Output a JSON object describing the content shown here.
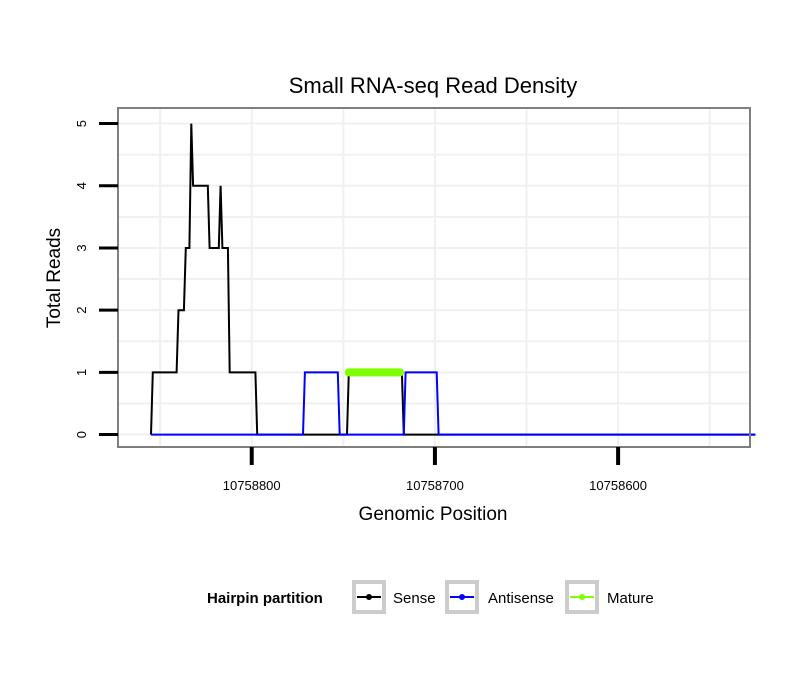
{
  "chart_data": {
    "type": "line",
    "title": "Small RNA-seq Read Density",
    "xlabel": "Genomic Position",
    "ylabel": "Total Reads",
    "x_reversed": true,
    "xlim": [
      10758873,
      10758528
    ],
    "ylim": [
      -0.2,
      5.25
    ],
    "xticks": [
      10758800,
      10758700,
      10758600
    ],
    "xtick_labels": [
      "10758800",
      "10758700",
      "10758600"
    ],
    "yticks": [
      0,
      1,
      2,
      3,
      4,
      5
    ],
    "ytick_labels": [
      "0",
      "1",
      "2",
      "3",
      "4",
      "5"
    ],
    "grid": true,
    "legend": {
      "title": "Hairpin partition",
      "position": "bottom",
      "entries": [
        {
          "label": "Sense",
          "color": "#000000"
        },
        {
          "label": "Antisense",
          "color": "#0000ff"
        },
        {
          "label": "Mature",
          "color": "#7fff00"
        }
      ]
    },
    "series": [
      {
        "name": "Sense",
        "color": "#000000",
        "x": [
          10758855,
          10758854,
          10758841,
          10758840,
          10758837,
          10758836,
          10758834,
          10758833,
          10758832,
          10758831,
          10758824,
          10758823,
          10758818,
          10758817,
          10758816,
          10758815,
          10758813,
          10758812,
          10758806,
          10758805,
          10758798,
          10758797,
          10758748,
          10758747,
          10758718,
          10758717,
          10758525
        ],
        "y": [
          0,
          1,
          1,
          2,
          2,
          3,
          3,
          5,
          4,
          4,
          4,
          3,
          3,
          4,
          3,
          3,
          3,
          1,
          1,
          1,
          1,
          0,
          0,
          1,
          1,
          0,
          0
        ]
      },
      {
        "name": "Antisense",
        "color": "#0000ff",
        "x": [
          10758855,
          10758772,
          10758771,
          10758753,
          10758752,
          10758717,
          10758716,
          10758699,
          10758698,
          10758525
        ],
        "y": [
          0,
          0,
          1,
          1,
          0,
          0,
          1,
          1,
          0,
          0
        ]
      },
      {
        "name": "Mature",
        "color": "#7fff00",
        "x": [
          10758747,
          10758719
        ],
        "y": [
          1,
          1
        ]
      }
    ]
  }
}
